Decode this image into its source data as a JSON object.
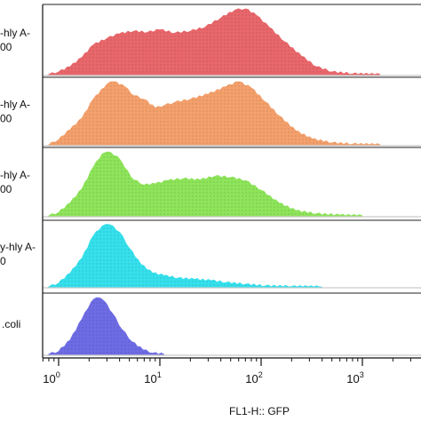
{
  "chart_data": {
    "type": "area",
    "title": "",
    "xlabel": "FL1-H:: GFP",
    "ylabel": "",
    "x_scale": "log",
    "xlim": [
      0.7,
      3500
    ],
    "x_ticks": [
      {
        "base": "10",
        "exp": "0",
        "value": 1
      },
      {
        "base": "10",
        "exp": "1",
        "value": 10
      },
      {
        "base": "10",
        "exp": "2",
        "value": 100
      },
      {
        "base": "10",
        "exp": "3",
        "value": 1000
      }
    ],
    "series": [
      {
        "label_lines": [
          "-hly A-",
          "00"
        ],
        "color": "#e8676b",
        "points": [
          [
            0.8,
            0
          ],
          [
            1,
            0.04
          ],
          [
            1.3,
            0.12
          ],
          [
            1.7,
            0.26
          ],
          [
            2.2,
            0.45
          ],
          [
            3,
            0.55
          ],
          [
            4,
            0.62
          ],
          [
            5.5,
            0.66
          ],
          [
            7.5,
            0.64
          ],
          [
            10,
            0.68
          ],
          [
            14,
            0.63
          ],
          [
            20,
            0.66
          ],
          [
            28,
            0.72
          ],
          [
            40,
            0.86
          ],
          [
            55,
            0.98
          ],
          [
            70,
            1.0
          ],
          [
            90,
            0.9
          ],
          [
            120,
            0.72
          ],
          [
            170,
            0.5
          ],
          [
            250,
            0.28
          ],
          [
            350,
            0.12
          ],
          [
            500,
            0.04
          ],
          [
            800,
            0.01
          ],
          [
            1500,
            0
          ]
        ]
      },
      {
        "label_lines": [
          "-hly A-",
          "00"
        ],
        "color": "#f4a06c",
        "points": [
          [
            0.8,
            0
          ],
          [
            1,
            0.08
          ],
          [
            1.3,
            0.24
          ],
          [
            1.7,
            0.42
          ],
          [
            2.2,
            0.72
          ],
          [
            3,
            0.96
          ],
          [
            3.5,
            1.0
          ],
          [
            4.5,
            0.92
          ],
          [
            5.5,
            0.78
          ],
          [
            7,
            0.72
          ],
          [
            9,
            0.58
          ],
          [
            11,
            0.62
          ],
          [
            14,
            0.67
          ],
          [
            20,
            0.72
          ],
          [
            30,
            0.8
          ],
          [
            45,
            0.92
          ],
          [
            60,
            1.0
          ],
          [
            80,
            0.9
          ],
          [
            110,
            0.68
          ],
          [
            150,
            0.46
          ],
          [
            220,
            0.22
          ],
          [
            320,
            0.09
          ],
          [
            500,
            0.03
          ],
          [
            800,
            0.01
          ],
          [
            1500,
            0
          ]
        ]
      },
      {
        "label_lines": [
          "-hly A-",
          "00"
        ],
        "color": "#8ee45a",
        "points": [
          [
            0.8,
            0
          ],
          [
            1,
            0.05
          ],
          [
            1.3,
            0.2
          ],
          [
            1.7,
            0.42
          ],
          [
            2.2,
            0.76
          ],
          [
            2.7,
            0.97
          ],
          [
            3,
            1.0
          ],
          [
            3.8,
            0.93
          ],
          [
            4.5,
            0.75
          ],
          [
            5.5,
            0.56
          ],
          [
            7,
            0.48
          ],
          [
            9,
            0.5
          ],
          [
            12,
            0.55
          ],
          [
            17,
            0.58
          ],
          [
            25,
            0.56
          ],
          [
            35,
            0.62
          ],
          [
            50,
            0.6
          ],
          [
            70,
            0.55
          ],
          [
            100,
            0.4
          ],
          [
            150,
            0.2
          ],
          [
            220,
            0.08
          ],
          [
            350,
            0.03
          ],
          [
            600,
            0.01
          ],
          [
            1000,
            0
          ]
        ]
      },
      {
        "label_lines": [
          "y-hly A-",
          "0"
        ],
        "color": "#35e0ec",
        "points": [
          [
            0.8,
            0
          ],
          [
            1,
            0.06
          ],
          [
            1.3,
            0.22
          ],
          [
            1.7,
            0.46
          ],
          [
            2.2,
            0.82
          ],
          [
            2.7,
            0.98
          ],
          [
            3.2,
            1.0
          ],
          [
            4,
            0.88
          ],
          [
            5,
            0.62
          ],
          [
            6.5,
            0.36
          ],
          [
            8.5,
            0.22
          ],
          [
            11,
            0.18
          ],
          [
            15,
            0.14
          ],
          [
            22,
            0.12
          ],
          [
            32,
            0.1
          ],
          [
            45,
            0.07
          ],
          [
            70,
            0.04
          ],
          [
            110,
            0.015
          ],
          [
            200,
            0.004
          ],
          [
            400,
            0
          ]
        ]
      },
      {
        "label_lines": [
          ".coli"
        ],
        "color": "#6e6ce4",
        "points": [
          [
            0.8,
            0
          ],
          [
            1,
            0.05
          ],
          [
            1.3,
            0.25
          ],
          [
            1.7,
            0.62
          ],
          [
            2.1,
            0.92
          ],
          [
            2.4,
            1.0
          ],
          [
            2.8,
            0.94
          ],
          [
            3.4,
            0.72
          ],
          [
            4.2,
            0.44
          ],
          [
            5.3,
            0.22
          ],
          [
            6.8,
            0.08
          ],
          [
            8.5,
            0.02
          ],
          [
            11,
            0
          ]
        ]
      }
    ]
  }
}
